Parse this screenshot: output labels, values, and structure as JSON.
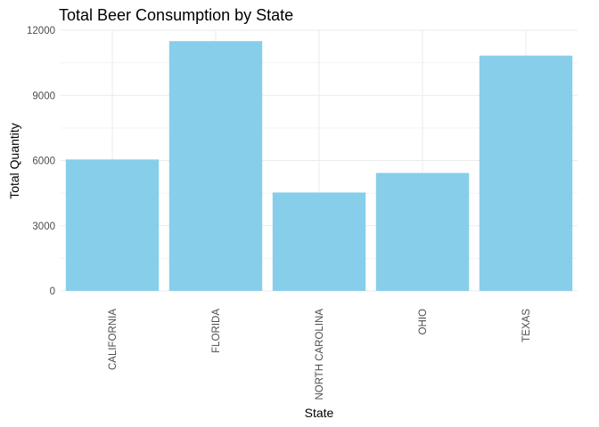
{
  "chart_data": {
    "type": "bar",
    "title": "Total Beer Consumption by State",
    "xlabel": "State",
    "ylabel": "Total Quantity",
    "categories": [
      "CALIFORNIA",
      "FLORIDA",
      "NORTH CAROLINA",
      "OHIO",
      "TEXAS"
    ],
    "values": [
      6050,
      11500,
      4530,
      5430,
      10830
    ],
    "ylim": [
      0,
      12000
    ],
    "yticks": [
      0,
      3000,
      6000,
      9000,
      12000
    ],
    "yticks_labels": [
      "0",
      "3000",
      "6000",
      "9000",
      "12000"
    ],
    "grid": true,
    "legend": "none",
    "bar_color": "#87CEEB"
  }
}
